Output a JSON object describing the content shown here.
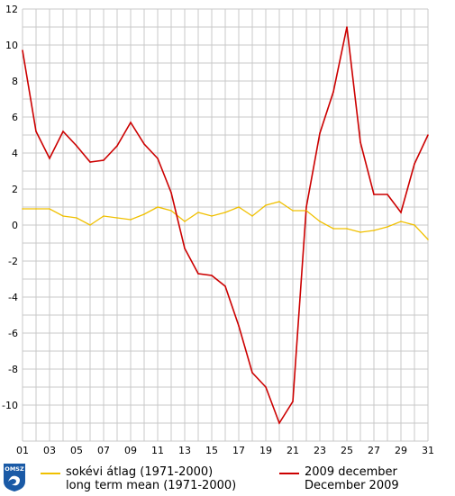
{
  "chart_data": {
    "type": "line",
    "x": [
      1,
      2,
      3,
      4,
      5,
      6,
      7,
      8,
      9,
      10,
      11,
      12,
      13,
      14,
      15,
      16,
      17,
      18,
      19,
      20,
      21,
      22,
      23,
      24,
      25,
      26,
      27,
      28,
      29,
      30,
      31
    ],
    "x_tick_labels": [
      "01",
      "03",
      "05",
      "07",
      "09",
      "11",
      "13",
      "15",
      "17",
      "19",
      "21",
      "23",
      "25",
      "27",
      "29",
      "31"
    ],
    "y_ticks": [
      -10,
      -8,
      -6,
      -4,
      -2,
      0,
      2,
      4,
      6,
      8,
      10,
      12
    ],
    "ylim": [
      -12,
      12
    ],
    "xlim": [
      1,
      31
    ],
    "grid": true,
    "legend_position": "bottom",
    "series": [
      {
        "name": "sokévi átlag (1971-2000)",
        "name_en": "long term mean (1971-2000)",
        "color": "#f0c000",
        "values": [
          0.9,
          0.9,
          0.9,
          0.5,
          0.4,
          0.0,
          0.5,
          0.4,
          0.3,
          0.6,
          1.0,
          0.8,
          0.2,
          0.7,
          0.5,
          0.7,
          1.0,
          0.5,
          1.1,
          1.3,
          0.8,
          0.8,
          0.2,
          -0.2,
          -0.2,
          -0.4,
          -0.3,
          -0.1,
          0.2,
          0.0,
          -0.8
        ]
      },
      {
        "name": "2009 december",
        "name_en": "December 2009",
        "color": "#cc0000",
        "values": [
          9.7,
          5.2,
          3.7,
          5.2,
          4.4,
          3.5,
          3.6,
          4.4,
          5.7,
          4.5,
          3.7,
          1.8,
          -1.3,
          -2.7,
          -2.8,
          -3.4,
          -5.6,
          -8.2,
          -9.0,
          -11.0,
          -9.8,
          1.0,
          5.1,
          7.4,
          11.0,
          4.6,
          1.7,
          1.7,
          0.7,
          3.4,
          5.0
        ]
      }
    ]
  },
  "logo": {
    "text": "OMSZ",
    "color": "#1a5aa6"
  }
}
